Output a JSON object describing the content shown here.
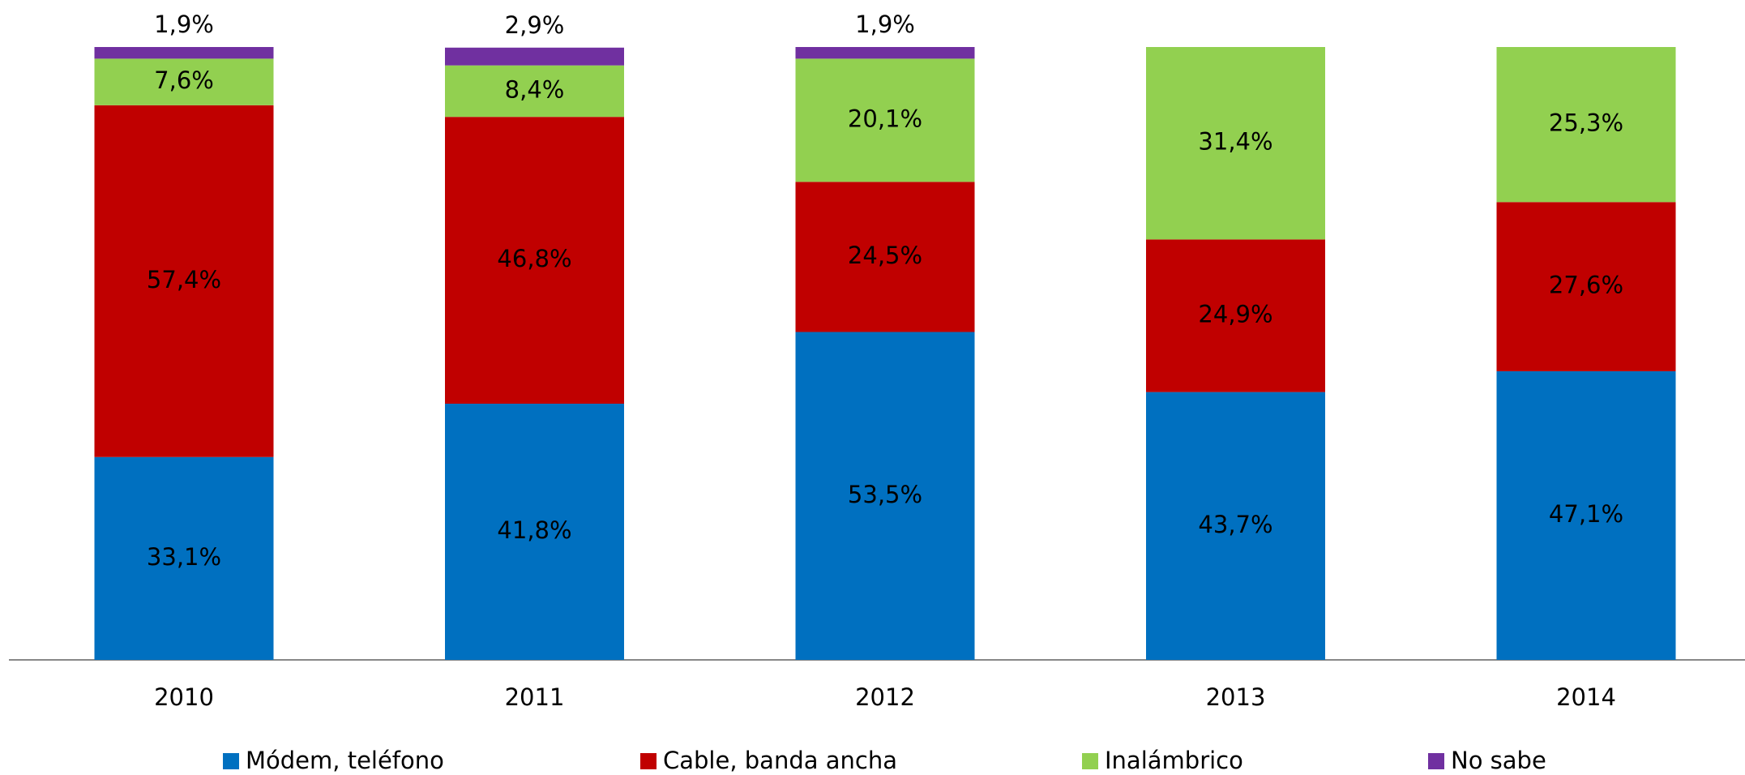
{
  "chart_data": {
    "type": "stacked_bar",
    "categories": [
      "2010",
      "2011",
      "2012",
      "2013",
      "2014"
    ],
    "ylim": [
      0,
      100
    ],
    "series": [
      {
        "name": "Módem, teléfono",
        "color": "#0070c0",
        "values": [
          33.1,
          41.8,
          53.5,
          43.7,
          47.1
        ],
        "value_labels": [
          "33,1%",
          "41,8%",
          "53,5%",
          "43,7%",
          "47,1%"
        ]
      },
      {
        "name": "Cable, banda ancha",
        "color": "#c00000",
        "values": [
          57.4,
          46.8,
          24.5,
          24.9,
          27.6
        ],
        "value_labels": [
          "57,4%",
          "46,8%",
          "24,5%",
          "24,9%",
          "27,6%"
        ]
      },
      {
        "name": "Inalámbrico",
        "color": "#92d050",
        "values": [
          7.6,
          8.4,
          20.1,
          31.4,
          25.3
        ],
        "value_labels": [
          "7,6%",
          "8,4%",
          "20,1%",
          "31,4%",
          "25,3%"
        ]
      },
      {
        "name": "No sabe",
        "color": "#7030a0",
        "values": [
          1.9,
          2.9,
          1.9,
          null,
          null
        ],
        "value_labels": [
          "1,9%",
          "2,9%",
          "1,9%",
          null,
          null
        ]
      }
    ]
  }
}
